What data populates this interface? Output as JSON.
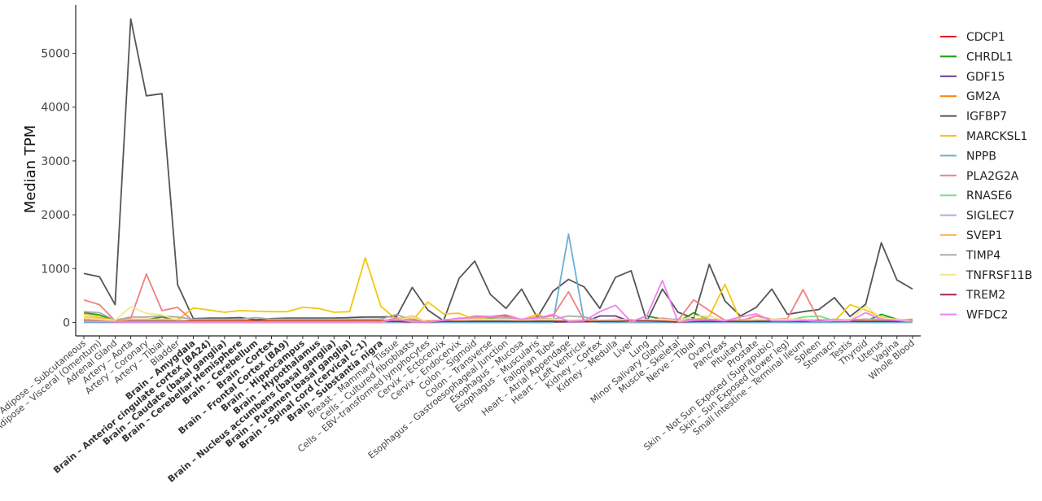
{
  "chart_data": {
    "type": "line",
    "title": "",
    "xlabel": "",
    "ylabel": "Median TPM",
    "ylim": [
      -250,
      5900
    ],
    "yticks": [
      0,
      1000,
      2000,
      3000,
      4000,
      5000
    ],
    "ytick_labels": [
      "0",
      "1000",
      "2000",
      "3000",
      "4000",
      "5000"
    ],
    "grid": false,
    "legend_position": "right",
    "categories": [
      "Adipose – Subcutaneous",
      "Adipose – Visceral (Omentum)",
      "Adrenal Gland",
      "Artery – Aorta",
      "Artery – Coronary",
      "Artery – Tibial",
      "Bladder",
      "Brain – Amygdala",
      "Brain – Anterior cingulate cortex (BA24)",
      "Brain – Caudate (basal ganglia)",
      "Brain – Cerebellar Hemisphere",
      "Brain – Cerebellum",
      "Brain – Cortex",
      "Brain – Frontal Cortex (BA9)",
      "Brain – Hippocampus",
      "Brain – Hypothalamus",
      "Brain – Nucleus accumbens (basal ganglia)",
      "Brain – Putamen (basal ganglia)",
      "Brain – Spinal cord (cervical c–1)",
      "Brain – Substantia nigra",
      "Breast – Mammary Tissue",
      "Cells – Cultured fibroblasts",
      "Cells – EBV–transformed lymphocytes",
      "Cervix – Ectocervix",
      "Cervix – Endocervix",
      "Colon – Sigmoid",
      "Colon – Transverse",
      "Esophagus – Gastroesophageal Junction",
      "Esophagus – Mucosa",
      "Esophagus – Muscularis",
      "Fallopian Tube",
      "Heart – Atrial Appendage",
      "Heart – Left Ventricle",
      "Kidney – Cortex",
      "Kidney – Medulla",
      "Liver",
      "Lung",
      "Minor Salivary Gland",
      "Muscle – Skeletal",
      "Nerve – Tibial",
      "Ovary",
      "Pancreas",
      "Pituitary",
      "Prostate",
      "Skin – Not Sun Exposed (Suprapubic)",
      "Skin – Sun Exposed (Lower leg)",
      "Small Intestine – Terminal Ileum",
      "Spleen",
      "Stomach",
      "Testis",
      "Thyroid",
      "Uterus",
      "Vagina",
      "Whole Blood"
    ],
    "bold_categories": [
      "Brain – Amygdala",
      "Brain – Anterior cingulate cortex (BA24)",
      "Brain – Caudate (basal ganglia)",
      "Brain – Cerebellar Hemisphere",
      "Brain – Cerebellum",
      "Brain – Cortex",
      "Brain – Frontal Cortex (BA9)",
      "Brain – Hippocampus",
      "Brain – Hypothalamus",
      "Brain – Nucleus accumbens (basal ganglia)",
      "Brain – Putamen (basal ganglia)",
      "Brain – Spinal cord (cervical c–1)",
      "Brain – Substantia nigra"
    ],
    "series": [
      {
        "name": "CDCP1",
        "color": "#e41a1c",
        "values": [
          10,
          10,
          5,
          8,
          8,
          8,
          20,
          2,
          2,
          2,
          2,
          2,
          2,
          2,
          2,
          2,
          2,
          2,
          5,
          2,
          15,
          30,
          2,
          10,
          15,
          30,
          25,
          15,
          20,
          30,
          10,
          5,
          5,
          15,
          10,
          10,
          20,
          15,
          5,
          10,
          10,
          5,
          10,
          20,
          40,
          30,
          10,
          10,
          15,
          10,
          20,
          10,
          20,
          5
        ]
      },
      {
        "name": "CHRDL1",
        "color": "#1a9e1a",
        "values": [
          180,
          140,
          30,
          40,
          50,
          100,
          40,
          5,
          5,
          5,
          5,
          5,
          5,
          5,
          5,
          5,
          5,
          5,
          5,
          5,
          60,
          40,
          2,
          30,
          50,
          60,
          80,
          120,
          40,
          100,
          60,
          30,
          10,
          40,
          40,
          10,
          120,
          60,
          10,
          180,
          40,
          10,
          20,
          60,
          30,
          20,
          20,
          40,
          20,
          30,
          20,
          150,
          60,
          20
        ]
      },
      {
        "name": "GDF15",
        "color": "#5e3c99",
        "values": [
          10,
          8,
          20,
          5,
          5,
          5,
          15,
          10,
          10,
          10,
          15,
          10,
          10,
          10,
          10,
          10,
          10,
          10,
          10,
          10,
          10,
          20,
          5,
          10,
          15,
          20,
          20,
          10,
          15,
          15,
          10,
          5,
          5,
          120,
          120,
          10,
          30,
          20,
          5,
          10,
          15,
          10,
          10,
          40,
          10,
          10,
          15,
          10,
          20,
          10,
          20,
          10,
          15,
          5
        ]
      },
      {
        "name": "GM2A",
        "color": "#ff7f00",
        "values": [
          50,
          40,
          30,
          30,
          30,
          30,
          30,
          40,
          40,
          40,
          40,
          40,
          40,
          40,
          40,
          40,
          40,
          40,
          40,
          40,
          40,
          40,
          30,
          40,
          40,
          40,
          40,
          40,
          40,
          40,
          40,
          40,
          40,
          40,
          40,
          40,
          50,
          40,
          30,
          40,
          40,
          30,
          40,
          50,
          40,
          40,
          40,
          40,
          40,
          40,
          40,
          40,
          40,
          60
        ]
      },
      {
        "name": "IGFBP7",
        "color": "#555555",
        "values": [
          910,
          850,
          330,
          5640,
          4210,
          4250,
          700,
          70,
          80,
          80,
          90,
          50,
          70,
          80,
          80,
          80,
          80,
          90,
          100,
          100,
          110,
          650,
          230,
          30,
          820,
          1140,
          520,
          260,
          620,
          90,
          580,
          800,
          660,
          260,
          840,
          960,
          20,
          620,
          190,
          80,
          1080,
          400,
          120,
          280,
          620,
          150,
          200,
          240,
          460,
          110,
          340,
          1480,
          790,
          620
        ]
      },
      {
        "name": "MARCKSL1",
        "color": "#f2c80f",
        "values": [
          150,
          100,
          30,
          50,
          50,
          50,
          50,
          270,
          230,
          190,
          220,
          210,
          200,
          200,
          280,
          260,
          190,
          200,
          1200,
          300,
          50,
          30,
          380,
          160,
          170,
          50,
          60,
          50,
          50,
          150,
          40,
          20,
          10,
          30,
          20,
          20,
          30,
          50,
          20,
          50,
          110,
          710,
          30,
          20,
          10,
          20,
          30,
          30,
          20,
          330,
          230,
          100,
          50,
          20
        ]
      },
      {
        "name": "NPPB",
        "color": "#6baed6",
        "values": [
          0,
          0,
          0,
          0,
          0,
          0,
          0,
          0,
          0,
          0,
          0,
          0,
          0,
          0,
          0,
          0,
          0,
          0,
          0,
          0,
          0,
          0,
          0,
          0,
          0,
          0,
          0,
          0,
          0,
          0,
          0,
          1640,
          20,
          0,
          0,
          0,
          0,
          0,
          0,
          0,
          0,
          0,
          0,
          0,
          0,
          0,
          0,
          0,
          0,
          0,
          0,
          0,
          0,
          0
        ]
      },
      {
        "name": "PLA2G2A",
        "color": "#f08080",
        "values": [
          420,
          330,
          30,
          80,
          900,
          220,
          280,
          20,
          20,
          20,
          20,
          20,
          20,
          20,
          20,
          20,
          20,
          20,
          20,
          20,
          80,
          60,
          20,
          40,
          50,
          120,
          110,
          140,
          50,
          100,
          120,
          570,
          30,
          40,
          60,
          50,
          30,
          80,
          40,
          420,
          220,
          40,
          30,
          120,
          60,
          70,
          610,
          40,
          40,
          50,
          60,
          40,
          60,
          40
        ]
      },
      {
        "name": "RNASE6",
        "color": "#7fdc7f",
        "values": [
          30,
          25,
          20,
          30,
          30,
          30,
          20,
          5,
          5,
          5,
          5,
          5,
          5,
          5,
          5,
          5,
          5,
          5,
          5,
          5,
          30,
          10,
          20,
          30,
          40,
          30,
          30,
          40,
          30,
          30,
          30,
          20,
          10,
          30,
          30,
          30,
          40,
          30,
          10,
          30,
          30,
          20,
          20,
          40,
          40,
          30,
          100,
          120,
          30,
          30,
          30,
          30,
          30,
          40
        ]
      },
      {
        "name": "SIGLEC7",
        "color": "#b8a8d8",
        "values": [
          20,
          20,
          10,
          30,
          30,
          20,
          20,
          5,
          5,
          5,
          5,
          5,
          5,
          5,
          5,
          5,
          5,
          5,
          5,
          5,
          20,
          10,
          10,
          20,
          20,
          20,
          20,
          20,
          20,
          20,
          20,
          10,
          10,
          20,
          20,
          20,
          20,
          20,
          10,
          20,
          20,
          10,
          20,
          20,
          20,
          20,
          30,
          40,
          20,
          10,
          20,
          20,
          20,
          30
        ]
      },
      {
        "name": "SVEP1",
        "color": "#fdb863",
        "values": [
          100,
          80,
          20,
          60,
          60,
          60,
          60,
          5,
          5,
          5,
          5,
          5,
          5,
          5,
          5,
          5,
          5,
          5,
          5,
          5,
          60,
          120,
          5,
          50,
          60,
          80,
          60,
          60,
          40,
          80,
          60,
          30,
          20,
          40,
          40,
          10,
          40,
          40,
          20,
          60,
          60,
          20,
          20,
          60,
          60,
          60,
          60,
          40,
          40,
          30,
          40,
          60,
          60,
          30
        ]
      },
      {
        "name": "TIMP4",
        "color": "#aaaaaa",
        "values": [
          200,
          180,
          40,
          100,
          100,
          120,
          100,
          60,
          60,
          60,
          60,
          90,
          60,
          60,
          60,
          60,
          60,
          60,
          60,
          60,
          150,
          30,
          10,
          40,
          40,
          60,
          60,
          80,
          40,
          80,
          60,
          120,
          100,
          40,
          40,
          30,
          40,
          60,
          60,
          60,
          60,
          40,
          50,
          60,
          60,
          60,
          60,
          40,
          60,
          40,
          60,
          60,
          60,
          30
        ]
      },
      {
        "name": "TNFRSF11B",
        "color": "#f6e58d",
        "values": [
          80,
          60,
          40,
          290,
          170,
          140,
          40,
          10,
          10,
          10,
          10,
          10,
          10,
          10,
          10,
          10,
          10,
          10,
          10,
          10,
          40,
          100,
          10,
          30,
          40,
          60,
          60,
          60,
          40,
          60,
          60,
          40,
          30,
          50,
          50,
          40,
          50,
          60,
          30,
          120,
          120,
          30,
          30,
          60,
          60,
          60,
          60,
          40,
          40,
          40,
          300,
          80,
          60,
          30
        ]
      },
      {
        "name": "TREM2",
        "color": "#a6284a",
        "values": [
          20,
          20,
          10,
          20,
          20,
          20,
          20,
          20,
          20,
          20,
          20,
          20,
          20,
          20,
          20,
          20,
          20,
          20,
          20,
          20,
          20,
          10,
          10,
          20,
          20,
          20,
          20,
          20,
          20,
          20,
          20,
          20,
          20,
          20,
          20,
          30,
          30,
          20,
          10,
          20,
          20,
          20,
          20,
          20,
          20,
          20,
          20,
          40,
          20,
          20,
          20,
          20,
          20,
          20
        ]
      },
      {
        "name": "WFDC2",
        "color": "#ee82ee",
        "values": [
          20,
          20,
          10,
          10,
          10,
          10,
          10,
          10,
          10,
          10,
          10,
          10,
          10,
          10,
          10,
          10,
          10,
          10,
          10,
          10,
          60,
          10,
          10,
          40,
          80,
          90,
          100,
          100,
          60,
          80,
          150,
          20,
          30,
          200,
          320,
          10,
          120,
          780,
          10,
          40,
          50,
          30,
          100,
          160,
          30,
          30,
          40,
          30,
          30,
          30,
          180,
          60,
          40,
          10
        ]
      }
    ]
  }
}
